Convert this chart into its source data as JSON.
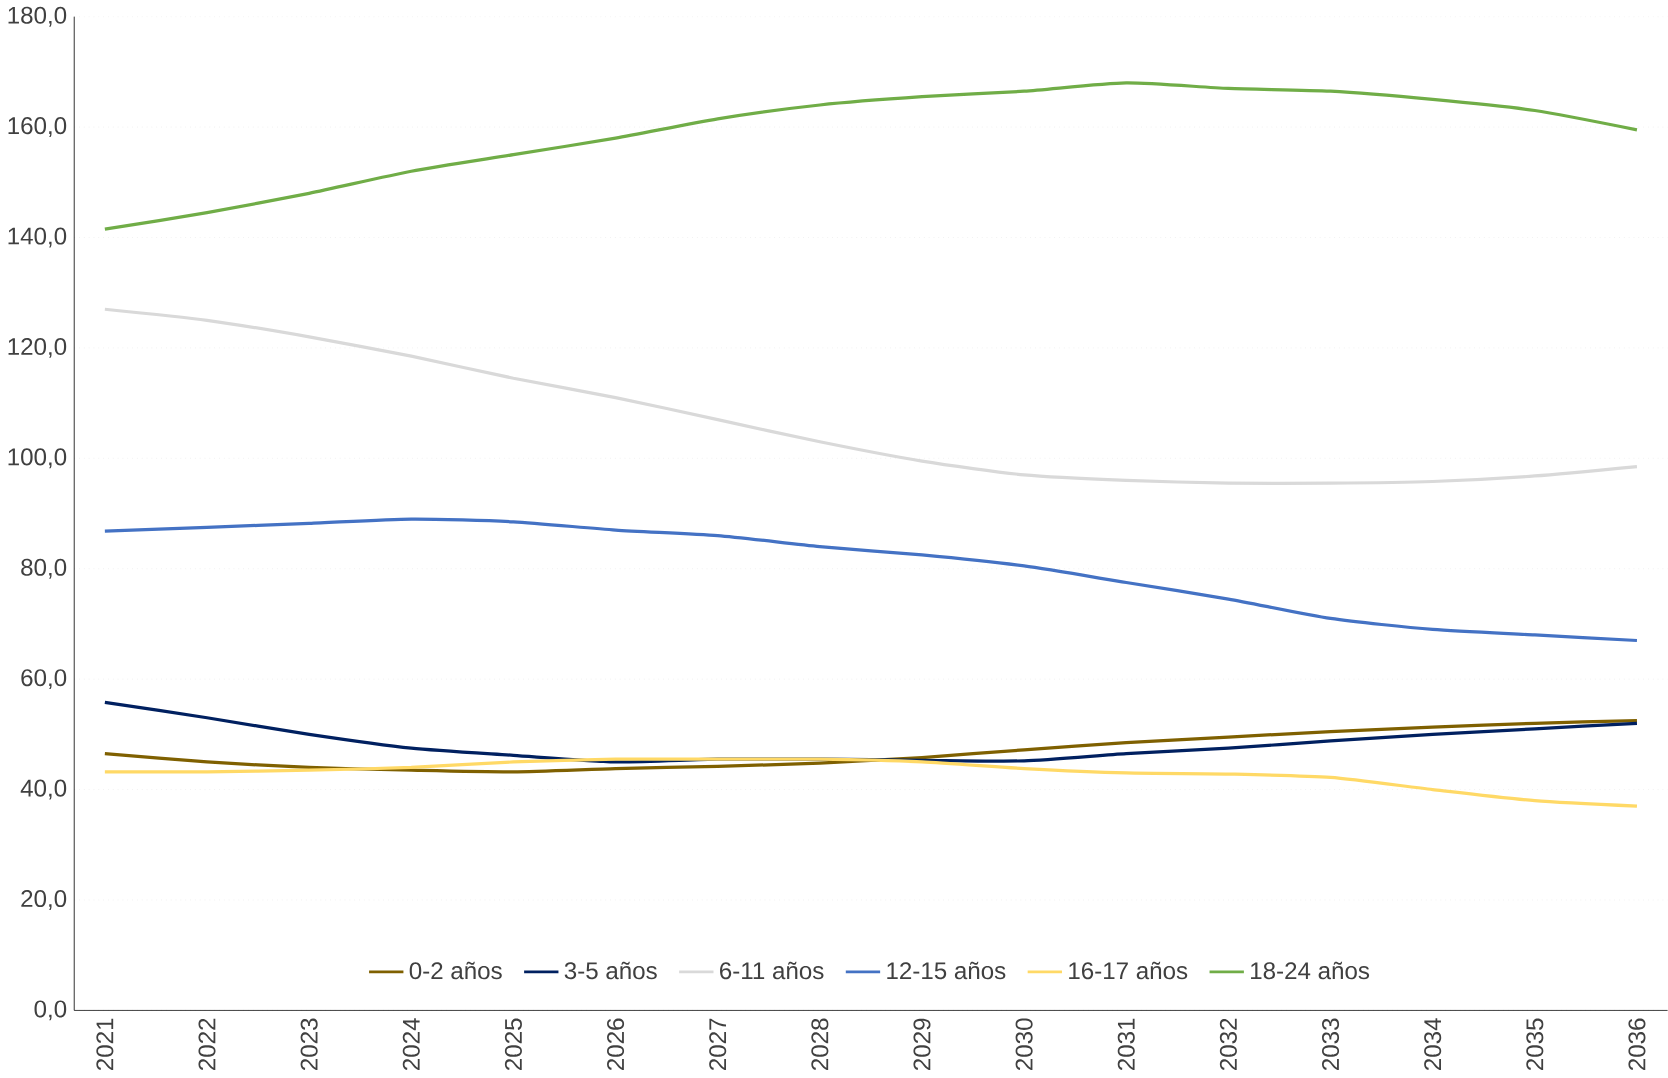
{
  "chart_data": {
    "type": "line",
    "categories": [
      "2021",
      "2022",
      "2023",
      "2024",
      "2025",
      "2026",
      "2027",
      "2028",
      "2029",
      "2030",
      "2031",
      "2032",
      "2033",
      "2034",
      "2035",
      "2036"
    ],
    "series": [
      {
        "name": "0-2 años",
        "color": "#7f6000",
        "values": [
          46.5,
          45,
          44,
          43.5,
          43.2,
          43.8,
          44.2,
          44.8,
          45.8,
          47.2,
          48.5,
          49.5,
          50.5,
          51.3,
          52,
          52.5
        ]
      },
      {
        "name": "3-5 años",
        "color": "#002060",
        "values": [
          55.8,
          53,
          50,
          47.5,
          46.2,
          45,
          45.5,
          45.5,
          45.3,
          45.2,
          46.5,
          47.5,
          48.8,
          50,
          51,
          52
        ]
      },
      {
        "name": "6-11 años",
        "color": "#d9d9d9",
        "values": [
          127,
          125,
          122,
          118.5,
          114.5,
          111,
          107,
          103,
          99.5,
          97,
          96,
          95.5,
          95.5,
          95.8,
          96.8,
          98.5
        ]
      },
      {
        "name": "12-15 años",
        "color": "#4472c4",
        "values": [
          86.8,
          87.5,
          88.2,
          89,
          88.5,
          87,
          86,
          84,
          82.5,
          80.5,
          77.5,
          74.5,
          71,
          69,
          68,
          67
        ]
      },
      {
        "name": "16-17 años",
        "color": "#ffd966",
        "values": [
          43.2,
          43.2,
          43.5,
          44,
          45,
          45.5,
          45.5,
          45.5,
          45,
          43.8,
          43,
          42.8,
          42.2,
          40,
          38,
          37
        ]
      },
      {
        "name": "18-24 años",
        "color": "#70ad47",
        "values": [
          141.5,
          144.5,
          148,
          152,
          155,
          158,
          161.5,
          164,
          165.5,
          166.5,
          168,
          167,
          166.5,
          165,
          163,
          159.5
        ]
      }
    ],
    "ylim": [
      0,
      180
    ],
    "yticks": [
      {
        "value": 0,
        "label": "0,0"
      },
      {
        "value": 20,
        "label": "20,0"
      },
      {
        "value": 40,
        "label": "40,0"
      },
      {
        "value": 60,
        "label": "60,0"
      },
      {
        "value": 80,
        "label": "80,0"
      },
      {
        "value": 100,
        "label": "100,0"
      },
      {
        "value": 120,
        "label": "120,0"
      },
      {
        "value": 140,
        "label": "140,0"
      },
      {
        "value": 160,
        "label": "160,0"
      },
      {
        "value": 180,
        "label": "180,0"
      }
    ],
    "grid": "y",
    "legend": "bottom",
    "marker": "none",
    "line_style": "solid"
  }
}
